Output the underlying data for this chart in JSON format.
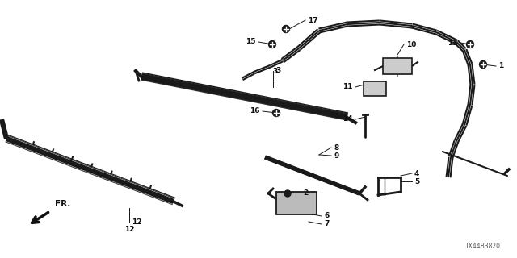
{
  "diagram_id": "TX44B3820",
  "bg_color": "#ffffff",
  "fig_width": 6.4,
  "fig_height": 3.2,
  "dpi": 100,
  "label_fontsize": 6.5,
  "line_color": "#1a1a1a"
}
